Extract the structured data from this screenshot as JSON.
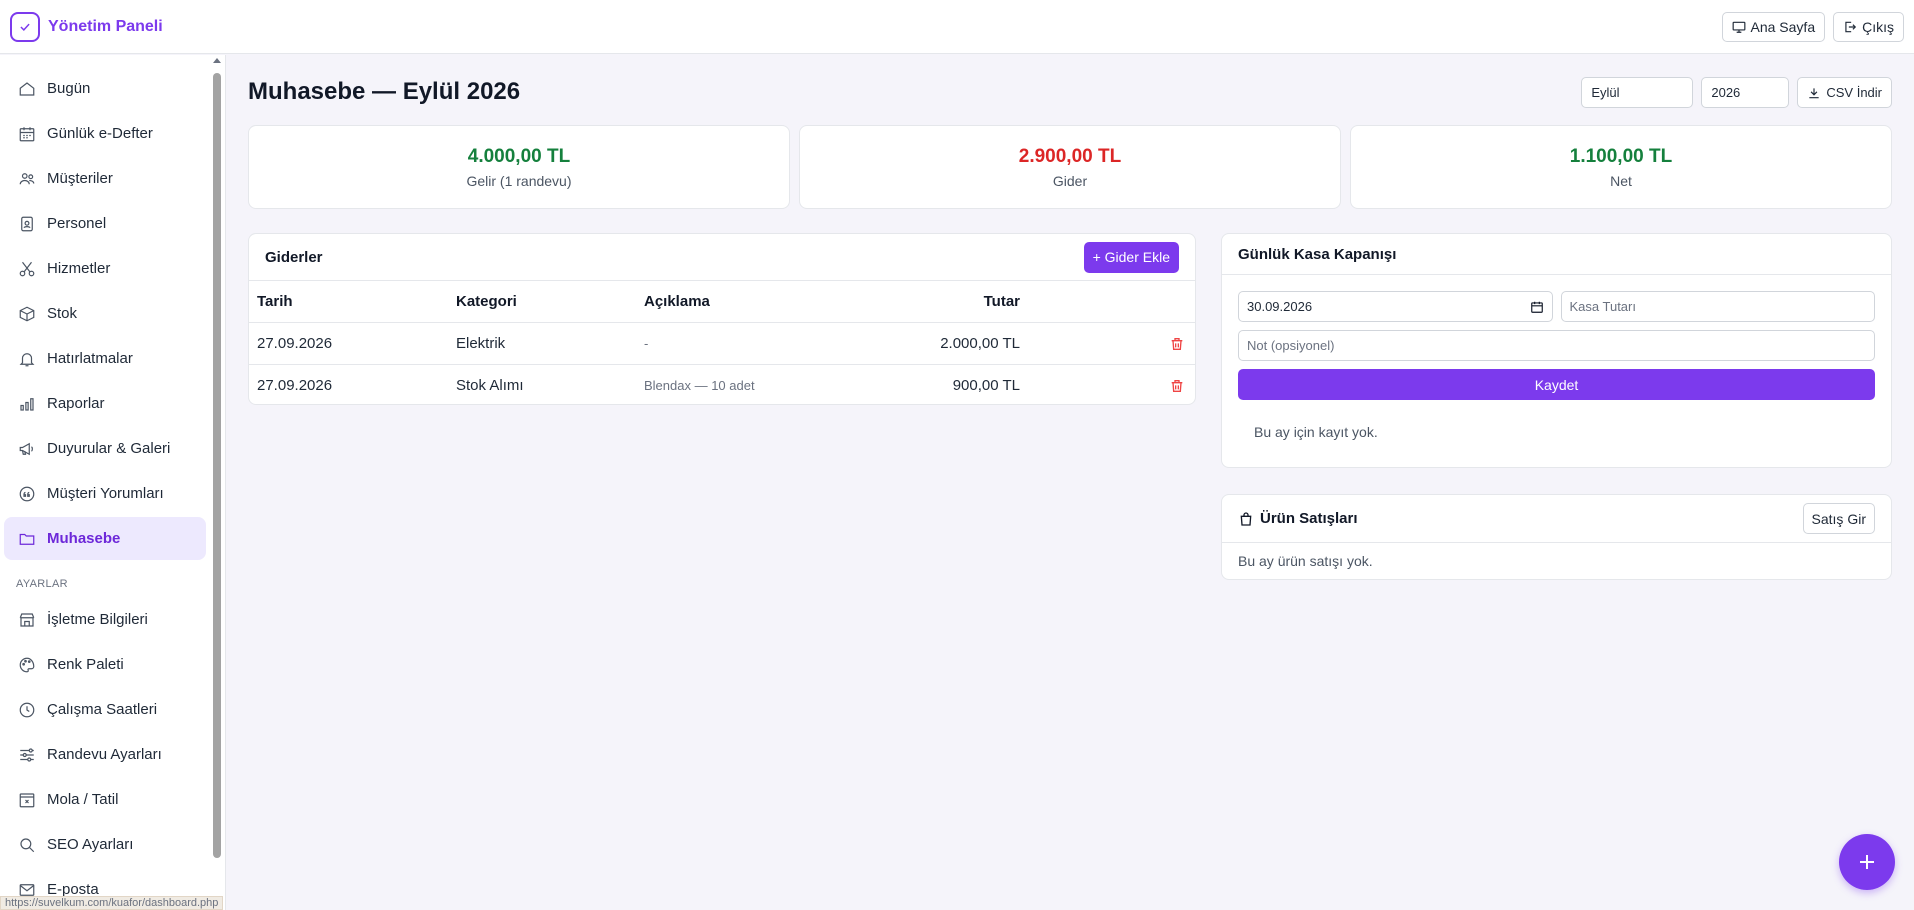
{
  "app": {
    "title": "Yönetim Paneli"
  },
  "header": {
    "home_label": "Ana Sayfa",
    "logout_label": "Çıkış"
  },
  "sidebar": {
    "items": [
      {
        "label": "Bugün",
        "icon": "home-icon"
      },
      {
        "label": "Günlük e-Defter",
        "icon": "calendar-icon"
      },
      {
        "label": "Müşteriler",
        "icon": "users-icon"
      },
      {
        "label": "Personel",
        "icon": "id-badge-icon"
      },
      {
        "label": "Hizmetler",
        "icon": "scissors-icon"
      },
      {
        "label": "Stok",
        "icon": "box-icon"
      },
      {
        "label": "Hatırlatmalar",
        "icon": "bell-icon"
      },
      {
        "label": "Raporlar",
        "icon": "bar-chart-icon"
      },
      {
        "label": "Duyurular & Galeri",
        "icon": "megaphone-icon"
      },
      {
        "label": "Müşteri Yorumları",
        "icon": "quote-icon"
      },
      {
        "label": "Muhasebe",
        "icon": "folder-icon",
        "active": true
      }
    ],
    "section_label": "AYARLAR",
    "settings": [
      {
        "label": "İşletme Bilgileri",
        "icon": "shop-icon"
      },
      {
        "label": "Renk Paleti",
        "icon": "palette-icon"
      },
      {
        "label": "Çalışma Saatleri",
        "icon": "clock-icon"
      },
      {
        "label": "Randevu Ayarları",
        "icon": "sliders-icon"
      },
      {
        "label": "Mola / Tatil",
        "icon": "calendar-x-icon"
      },
      {
        "label": "SEO Ayarları",
        "icon": "search-icon"
      },
      {
        "label": "E-posta",
        "icon": "mail-icon"
      }
    ]
  },
  "status_url": "https://suvelkum.com/kuafor/dashboard.php",
  "main": {
    "title": "Muhasebe — Eylül 2026",
    "month_value": "Eylül",
    "year_value": "2026",
    "csv_label": "CSV İndir",
    "stats": [
      {
        "value": "4.000,00 TL",
        "label": "Gelir (1 randevu)",
        "color": "#15803d"
      },
      {
        "value": "2.900,00 TL",
        "label": "Gider",
        "color": "#dc2626"
      },
      {
        "value": "1.100,00 TL",
        "label": "Net",
        "color": "#15803d"
      }
    ]
  },
  "expenses": {
    "title": "Giderler",
    "add_label": "+ Gider Ekle",
    "columns": [
      "Tarih",
      "Kategori",
      "Açıklama",
      "Tutar"
    ],
    "rows": [
      {
        "date": "27.09.2026",
        "category": "Elektrik",
        "desc": "-",
        "amount": "2.000,00 TL"
      },
      {
        "date": "27.09.2026",
        "category": "Stok Alımı",
        "desc": "Blendax — 10 adet",
        "amount": "900,00 TL"
      }
    ]
  },
  "kasa": {
    "title": "Günlük Kasa Kapanışı",
    "date_value": "30.09.2026",
    "amount_placeholder": "Kasa Tutarı",
    "note_placeholder": "Not (opsiyonel)",
    "save_label": "Kaydet",
    "empty_text": "Bu ay için kayıt yok."
  },
  "sales": {
    "title": "Ürün Satışları",
    "button_label": "Satış Gir",
    "empty_text": "Bu ay ürün satışı yok."
  }
}
